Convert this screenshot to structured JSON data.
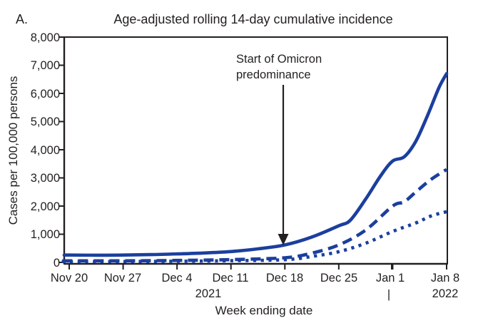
{
  "panel_label": "A.",
  "chart_data": {
    "type": "line",
    "title": "Age-adjusted rolling 14-day cumulative incidence",
    "xlabel": "Week ending date",
    "ylabel": "Cases per 100,000 persons",
    "ylim": [
      0,
      8000
    ],
    "xlim_days": [
      0,
      49
    ],
    "grid": false,
    "legend": "none",
    "y_tick_labels": [
      "0",
      "1,000",
      "2,000",
      "3,000",
      "4,000",
      "5,000",
      "6,000",
      "7,000",
      "8,000"
    ],
    "y_tick_values": [
      0,
      1000,
      2000,
      3000,
      4000,
      5000,
      6000,
      7000,
      8000
    ],
    "x_tick_labels": [
      "Nov 20",
      "Nov 27",
      "Dec 4",
      "Dec 11",
      "Dec 18",
      "Dec 25",
      "Jan 1",
      "Jan 8"
    ],
    "x_tick_days": [
      0,
      7,
      14,
      21,
      28,
      35,
      42,
      49
    ],
    "year_left": "2021",
    "year_divider": "|",
    "year_right": "2022",
    "annotation": {
      "line1": "Start of Omicron",
      "line2": "predominance",
      "arrow_day": 28,
      "arrow_tip_value": 650
    },
    "line_color": "#1b3f9e",
    "axis_color": "#231f20",
    "series": [
      {
        "name": "solid-line",
        "style": "solid",
        "points": [
          [
            0,
            260
          ],
          [
            3.5,
            255
          ],
          [
            7,
            260
          ],
          [
            10.5,
            275
          ],
          [
            14,
            300
          ],
          [
            17.5,
            335
          ],
          [
            21,
            385
          ],
          [
            24.5,
            480
          ],
          [
            28,
            620
          ],
          [
            31.5,
            900
          ],
          [
            35,
            1300
          ],
          [
            36.5,
            1500
          ],
          [
            38.5,
            2250
          ],
          [
            40.5,
            3100
          ],
          [
            42,
            3600
          ],
          [
            43.5,
            3750
          ],
          [
            45,
            4300
          ],
          [
            46.5,
            5200
          ],
          [
            48,
            6200
          ],
          [
            49,
            6700
          ]
        ]
      },
      {
        "name": "dashed-line",
        "style": "dashed",
        "points": [
          [
            0,
            55
          ],
          [
            7,
            55
          ],
          [
            14,
            70
          ],
          [
            21,
            100
          ],
          [
            28,
            165
          ],
          [
            31.5,
            330
          ],
          [
            35,
            620
          ],
          [
            38.5,
            1150
          ],
          [
            42,
            2000
          ],
          [
            43.5,
            2150
          ],
          [
            45,
            2500
          ],
          [
            47,
            2950
          ],
          [
            49,
            3300
          ]
        ]
      },
      {
        "name": "dotted-line",
        "style": "dotted",
        "points": [
          [
            0,
            25
          ],
          [
            7,
            30
          ],
          [
            14,
            40
          ],
          [
            21,
            60
          ],
          [
            28,
            95
          ],
          [
            31.5,
            210
          ],
          [
            35,
            380
          ],
          [
            38.5,
            680
          ],
          [
            42,
            1100
          ],
          [
            45,
            1400
          ],
          [
            47,
            1650
          ],
          [
            49,
            1800
          ]
        ]
      }
    ]
  }
}
